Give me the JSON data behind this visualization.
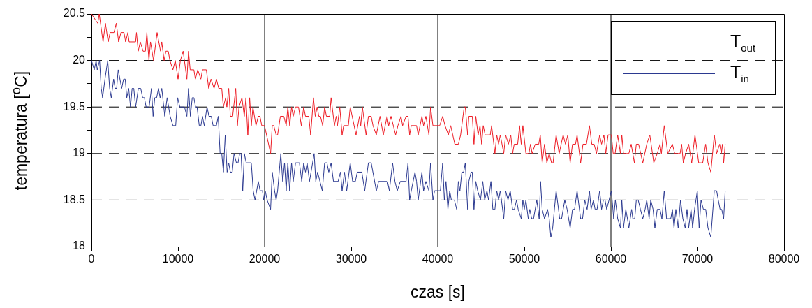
{
  "chart_data": {
    "type": "line",
    "xlabel": "czas [s]",
    "ylabel": "temperatura [$^{o}$C]",
    "xlim": [
      0,
      80000
    ],
    "xticks": [
      0,
      10000,
      20000,
      30000,
      40000,
      50000,
      60000,
      70000,
      80000
    ],
    "ylim": [
      18,
      20.5
    ],
    "yticks": [
      18,
      {
        "value": 18.25,
        "label": null
      },
      18.5,
      {
        "value": 18.75,
        "label": null
      },
      19,
      {
        "value": 19.25,
        "label": null
      },
      19.5,
      {
        "value": 19.75,
        "label": null
      },
      20,
      {
        "value": 20.25,
        "label": null
      },
      20.5
    ],
    "grid": "y",
    "legend": "top right",
    "marker": "none",
    "ref_lines": [
      {
        "axis": "x",
        "value": 20000,
        "color": "#000000",
        "line_style": "solid"
      },
      {
        "axis": "x",
        "value": 40000,
        "color": "#000000",
        "line_style": "solid"
      },
      {
        "axis": "x",
        "value": 60000,
        "color": "#000000",
        "line_style": "solid"
      }
    ],
    "series": [
      {
        "name": "T$_{out}$",
        "color": "#ee1c25",
        "x": [
          0,
          725,
          900,
          1340,
          1610,
          1930,
          2150,
          2600,
          2870,
          3140,
          3400,
          3760,
          3950,
          4200,
          4350,
          5100,
          5200,
          5400,
          5640,
          5960,
          6230,
          6400,
          6640,
          6820,
          7170,
          7580,
          7980,
          8120,
          8390,
          8600,
          8870,
          9060,
          9410,
          9680,
          10000,
          10270,
          10590,
          11020,
          11210,
          11400,
          11830,
          12000,
          12280,
          12630,
          12820,
          13270,
          13540,
          13810,
          14160,
          14430,
          14700,
          15050,
          15230,
          15500,
          15640,
          15850,
          16040,
          16310,
          16660,
          16850,
          17040,
          17380,
          17650,
          17840,
          18060,
          18270,
          18460,
          18650,
          19000,
          19270,
          19460,
          19670,
          19990,
          20690,
          20880,
          21060,
          21330,
          21500,
          21820,
          22220,
          22490,
          22680,
          22900,
          23110,
          23300,
          23570,
          23920,
          24240,
          24510,
          24720,
          25100,
          25320,
          25640,
          25850,
          26070,
          26260,
          26450,
          26710,
          26930,
          27140,
          27520,
          27680,
          28060,
          28270,
          28410,
          28680,
          28950,
          29130,
          29670,
          29890,
          30560,
          30960,
          31100,
          31290,
          31720,
          31990,
          32310,
          32520,
          32900,
          33330,
          33710,
          34140,
          34330,
          34600,
          35130,
          35400,
          35750,
          35940,
          36340,
          36560,
          36750,
          36940,
          37550,
          37740,
          38170,
          38360,
          38630,
          38980,
          39170,
          39440,
          40220,
          40570,
          40840,
          41220,
          41490,
          41970,
          42380,
          42640,
          43050,
          43180,
          43450,
          43590,
          43990,
          44180,
          44390,
          44660,
          44880,
          45070,
          45250,
          45470,
          46060,
          46220,
          46600,
          46810,
          47030,
          47220,
          47620,
          47840,
          48160,
          48430,
          48640,
          48830,
          49230,
          49450,
          49640,
          49830,
          50180,
          50530,
          50710,
          50900,
          51250,
          51660,
          51840,
          52060,
          52330,
          52600,
          52870,
          53140,
          53320,
          53670,
          54020,
          54480,
          54750,
          55020,
          55290,
          55560,
          55910,
          56090,
          56500,
          56770,
          57170,
          57520,
          57790,
          58060,
          58330,
          58700,
          58920,
          59190,
          59400,
          59670,
          60050,
          60260,
          60480,
          60780,
          61100,
          61260,
          61450,
          62070,
          62340,
          62710,
          62930,
          63200,
          63680,
          64140,
          64490,
          64950,
          65350,
          65670,
          65830,
          66160,
          66560,
          67100,
          67370,
          67990,
          68170,
          68360,
          68630,
          68980,
          69330,
          69710,
          70140,
          70600,
          70940,
          71210,
          71540,
          71940,
          72210,
          72560,
          72750,
          72880,
          73020,
          73200
        ],
        "values": [
          20.5,
          20.4,
          20.5,
          20.2,
          20.4,
          20.2,
          20.3,
          20.3,
          20.4,
          20.2,
          20.3,
          20.3,
          20.2,
          20.3,
          20.2,
          20.2,
          20.3,
          20.1,
          20.2,
          20.1,
          20.1,
          20.3,
          20.0,
          20.2,
          20.0,
          20.3,
          20.1,
          20.2,
          20.0,
          20.1,
          20.1,
          20.0,
          19.9,
          20.0,
          19.8,
          20.0,
          20.1,
          19.8,
          20.1,
          19.9,
          19.9,
          19.8,
          19.9,
          19.8,
          19.9,
          19.9,
          19.7,
          19.8,
          19.7,
          19.8,
          19.7,
          19.7,
          19.5,
          19.6,
          19.5,
          19.7,
          19.4,
          19.4,
          19.7,
          19.3,
          19.5,
          19.6,
          19.4,
          19.6,
          19.2,
          19.6,
          19.3,
          19.5,
          19.3,
          19.4,
          19.4,
          19.3,
          19.3,
          19.0,
          19.3,
          19.3,
          19.2,
          19.2,
          19.4,
          19.4,
          19.3,
          19.5,
          19.3,
          19.5,
          19.4,
          19.5,
          19.5,
          19.3,
          19.5,
          19.4,
          19.4,
          19.2,
          19.6,
          19.4,
          19.5,
          19.4,
          19.4,
          19.3,
          19.5,
          19.4,
          19.4,
          19.6,
          19.3,
          19.4,
          19.3,
          19.5,
          19.2,
          19.3,
          19.3,
          19.5,
          19.2,
          19.4,
          19.3,
          19.5,
          19.2,
          19.4,
          19.4,
          19.3,
          19.2,
          19.4,
          19.2,
          19.4,
          19.3,
          19.4,
          19.2,
          19.3,
          19.4,
          19.3,
          19.4,
          19.4,
          19.2,
          19.3,
          19.3,
          19.2,
          19.4,
          19.3,
          19.4,
          19.2,
          19.5,
          19.3,
          19.3,
          19.4,
          19.3,
          19.2,
          19.3,
          19.1,
          19.1,
          19.2,
          19.5,
          19.5,
          19.2,
          19.4,
          19.4,
          19.1,
          19.4,
          19.2,
          19.3,
          19.1,
          19.3,
          19.2,
          19.2,
          19.3,
          19.0,
          19.2,
          19.1,
          19.2,
          19.0,
          19.2,
          19.1,
          19.2,
          19.0,
          19.1,
          19.1,
          19.3,
          19.1,
          19.3,
          19.0,
          19.0,
          19.1,
          19.0,
          19.1,
          19.1,
          19.2,
          18.9,
          19.1,
          18.9,
          19.0,
          18.9,
          18.9,
          19.2,
          19.0,
          19.2,
          19.1,
          19.2,
          18.9,
          19.1,
          19.1,
          19.2,
          18.9,
          19.1,
          19.1,
          19.3,
          19.1,
          19.1,
          19.0,
          19.2,
          19.1,
          19.2,
          19.0,
          19.2,
          19.2,
          19.0,
          19.0,
          19.2,
          19.0,
          19.2,
          19.0,
          19.0,
          19.1,
          18.9,
          19.1,
          19.1,
          18.9,
          19.1,
          19.2,
          18.9,
          19.0,
          19.1,
          19.0,
          19.3,
          19.0,
          19.1,
          19.0,
          19.0,
          19.1,
          18.9,
          19.0,
          19.1,
          18.9,
          19.2,
          18.9,
          18.9,
          19.1,
          18.9,
          18.8,
          19.2,
          19.0,
          19.1,
          19.0,
          19.1,
          18.9,
          19.1
        ]
      },
      {
        "name": "T$_{in}$",
        "color": "#2b3990",
        "x": [
          0,
          320,
          540,
          670,
          940,
          1130,
          1290,
          1560,
          1880,
          2100,
          2290,
          2560,
          2740,
          2910,
          3090,
          3490,
          3710,
          3900,
          4080,
          4300,
          4510,
          4700,
          4890,
          5100,
          5420,
          5690,
          5910,
          6120,
          6310,
          6660,
          6930,
          7120,
          7310,
          7530,
          7740,
          7930,
          8120,
          8470,
          8740,
          9090,
          9410,
          9730,
          9950,
          10210,
          10750,
          11020,
          11210,
          11430,
          11640,
          11830,
          12020,
          12200,
          12450,
          12640,
          12820,
          13030,
          13350,
          13570,
          13840,
          14050,
          14430,
          14640,
          14860,
          15050,
          15240,
          15450,
          15670,
          15850,
          16040,
          16260,
          16470,
          16740,
          16930,
          17120,
          17280,
          17470,
          17660,
          17870,
          18460,
          18680,
          18890,
          19270,
          19480,
          19750,
          19890,
          20070,
          20290,
          20690,
          20880,
          21150,
          21330,
          21500,
          21870,
          22090,
          22300,
          22490,
          22680,
          22890,
          23110,
          23300,
          23570,
          24020,
          24290,
          24510,
          24720,
          24910,
          25180,
          25720,
          25910,
          26120,
          26390,
          26660,
          26930,
          27200,
          27410,
          27680,
          27950,
          28490,
          28760,
          28950,
          29220,
          29480,
          29890,
          30160,
          30480,
          30700,
          31230,
          31560,
          31990,
          32310,
          32900,
          33170,
          34190,
          34410,
          34780,
          35050,
          35320,
          35670,
          36340,
          36560,
          36750,
          36940,
          37370,
          37550,
          37740,
          38170,
          38360,
          38630,
          38980,
          39170,
          39440,
          39630,
          40300,
          40570,
          40760,
          40950,
          41170,
          41380,
          41570,
          41920,
          42190,
          42380,
          42560,
          42780,
          42990,
          43180,
          43450,
          43590,
          43850,
          43990,
          44180,
          44390,
          44610,
          44930,
          45200,
          45420,
          45680,
          45870,
          46140,
          46360,
          46600,
          46810,
          47030,
          47220,
          47620,
          47840,
          48110,
          48370,
          48640,
          48850,
          49100,
          49290,
          49640,
          49830,
          49990,
          50180,
          50450,
          50630,
          50850,
          51060,
          51440,
          51710,
          51870,
          52060,
          52330,
          52680,
          52870,
          53060,
          53270,
          53670,
          53810,
          54080,
          54300,
          54670,
          54940,
          55290,
          55560,
          55800,
          56090,
          56500,
          56720,
          56980,
          57250,
          57520,
          57710,
          57980,
          58170,
          58400,
          58700,
          58920,
          59130,
          59320,
          59510,
          59780,
          60050,
          60320,
          60510,
          60780,
          61100,
          61260,
          61450,
          61720,
          61910,
          62070,
          62390,
          62530,
          62750,
          62930,
          63150,
          63410,
          63680,
          63950,
          64140,
          64410,
          64600,
          64870,
          65080,
          65350,
          65670,
          65890,
          66160,
          66430,
          66910,
          67100,
          67290,
          67500,
          67770,
          68040,
          68310,
          68580,
          68790,
          68980,
          69250,
          69440,
          69660,
          69980,
          70190,
          70410,
          70680,
          70950,
          71210,
          71540,
          71940,
          72210,
          72400,
          72610,
          72800,
          73020,
          73200
        ],
        "values": [
          20.0,
          19.9,
          20.0,
          19.9,
          20.0,
          19.7,
          19.6,
          19.8,
          20.0,
          19.7,
          19.6,
          19.8,
          19.7,
          19.7,
          19.9,
          19.7,
          19.8,
          19.8,
          19.6,
          19.7,
          19.5,
          19.7,
          19.7,
          19.5,
          19.7,
          19.7,
          19.6,
          19.6,
          19.5,
          19.5,
          19.7,
          19.4,
          19.6,
          19.6,
          19.7,
          19.6,
          19.7,
          19.4,
          19.6,
          19.4,
          19.3,
          19.3,
          19.6,
          19.5,
          19.5,
          19.4,
          19.7,
          19.4,
          19.6,
          19.6,
          19.5,
          19.5,
          19.3,
          19.3,
          19.4,
          19.3,
          19.5,
          19.4,
          19.4,
          19.3,
          19.3,
          19.4,
          19.0,
          19.0,
          18.8,
          19.2,
          18.8,
          18.9,
          18.8,
          18.8,
          19.0,
          18.9,
          18.9,
          19.0,
          19.0,
          18.6,
          19.0,
          18.9,
          18.9,
          18.6,
          18.5,
          18.7,
          18.6,
          18.6,
          18.5,
          18.6,
          18.5,
          18.4,
          18.8,
          18.6,
          18.5,
          18.6,
          19.0,
          18.7,
          18.9,
          18.6,
          18.9,
          18.6,
          18.9,
          18.7,
          18.9,
          18.9,
          18.7,
          18.9,
          18.8,
          18.9,
          18.7,
          19.0,
          18.7,
          18.8,
          18.7,
          18.6,
          18.9,
          18.9,
          18.8,
          18.9,
          18.7,
          18.7,
          18.8,
          18.6,
          18.8,
          18.6,
          18.9,
          18.7,
          18.7,
          18.8,
          18.8,
          18.6,
          18.9,
          18.9,
          18.6,
          18.7,
          18.7,
          18.6,
          18.9,
          18.7,
          18.6,
          18.7,
          18.7,
          18.9,
          18.5,
          18.6,
          18.8,
          18.7,
          18.5,
          18.8,
          18.6,
          18.7,
          18.6,
          18.9,
          18.5,
          18.6,
          18.6,
          18.9,
          18.5,
          18.7,
          18.4,
          18.6,
          18.5,
          18.5,
          18.4,
          18.7,
          18.6,
          18.8,
          18.8,
          18.9,
          18.4,
          18.7,
          18.8,
          18.8,
          18.4,
          18.7,
          18.6,
          18.5,
          18.7,
          18.5,
          18.6,
          18.5,
          18.7,
          18.4,
          18.4,
          18.6,
          18.5,
          18.6,
          18.3,
          18.6,
          18.5,
          18.6,
          18.4,
          18.4,
          18.5,
          18.4,
          18.3,
          18.5,
          18.4,
          18.5,
          18.3,
          18.4,
          18.3,
          18.3,
          18.5,
          18.3,
          18.7,
          18.4,
          18.3,
          18.4,
          18.3,
          18.1,
          18.2,
          18.6,
          18.5,
          18.3,
          18.3,
          18.5,
          18.4,
          18.2,
          18.4,
          18.4,
          18.6,
          18.3,
          18.3,
          18.5,
          18.4,
          18.6,
          18.4,
          18.5,
          18.4,
          18.4,
          18.6,
          18.4,
          18.5,
          18.5,
          18.4,
          18.5,
          18.6,
          18.3,
          18.5,
          18.3,
          18.2,
          18.5,
          18.2,
          18.4,
          18.3,
          18.2,
          18.4,
          18.3,
          18.3,
          18.5,
          18.5,
          18.4,
          18.3,
          18.4,
          18.5,
          18.3,
          18.5,
          18.4,
          18.2,
          18.4,
          18.4,
          18.3,
          18.6,
          18.3,
          18.3,
          18.4,
          18.2,
          18.4,
          18.2,
          18.5,
          18.3,
          18.2,
          18.4,
          18.2,
          18.4,
          18.2,
          18.4,
          18.6,
          18.2,
          18.5,
          18.4,
          18.4,
          18.2,
          18.1,
          18.6,
          18.6,
          18.5,
          18.4,
          18.4,
          18.3,
          18.6
        ]
      }
    ]
  }
}
